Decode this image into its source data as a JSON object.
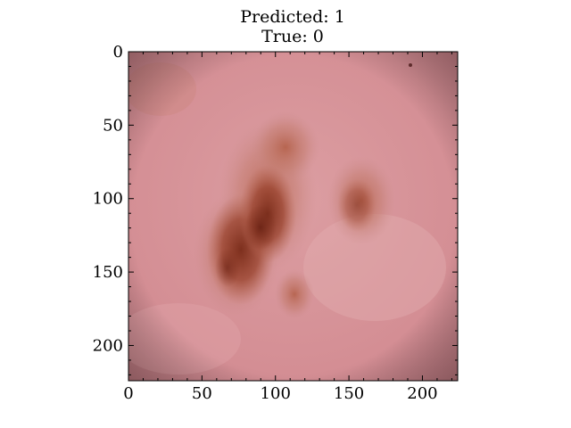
{
  "figure": {
    "title_line1": "Predicted: 1",
    "title_line2": "True: 0"
  },
  "axes": {
    "x_ticks": [
      0,
      50,
      100,
      150,
      200
    ],
    "y_ticks": [
      0,
      50,
      100,
      150,
      200
    ],
    "x_range": [
      0,
      224
    ],
    "y_range": [
      0,
      224
    ]
  },
  "image": {
    "subject": "dermoscopy skin lesion",
    "colors": {
      "skin_base": "#d8949a",
      "lesion_light": "#b8674e",
      "lesion_dark": "#7e2f1c"
    }
  }
}
